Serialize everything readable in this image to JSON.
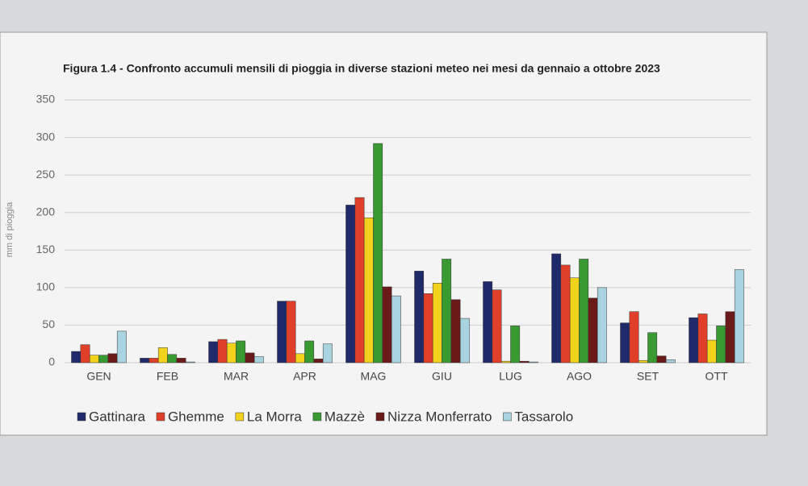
{
  "chart_data": {
    "type": "bar",
    "title": "Figura 1.4 - Confronto accumuli mensili di pioggia in diverse stazioni meteo nei mesi da gennaio a ottobre 2023",
    "y_label": "mm di pioggia",
    "categories": [
      "GEN",
      "FEB",
      "MAR",
      "APR",
      "MAG",
      "GIU",
      "LUG",
      "AGO",
      "SET",
      "OTT"
    ],
    "series": [
      {
        "name": "Gattinara",
        "color": "#1f2a6b",
        "values": [
          15,
          6,
          28,
          82,
          210,
          122,
          108,
          145,
          53,
          60
        ]
      },
      {
        "name": "Ghemme",
        "color": "#e0402a",
        "values": [
          24,
          6,
          31,
          82,
          220,
          92,
          97,
          130,
          68,
          65
        ]
      },
      {
        "name": "La Morra",
        "color": "#f2d21b",
        "values": [
          10,
          20,
          26,
          12,
          193,
          106,
          2,
          113,
          3,
          30
        ]
      },
      {
        "name": "Mazzè",
        "color": "#3a9a32",
        "values": [
          10,
          11,
          29,
          29,
          292,
          138,
          49,
          138,
          40,
          49
        ]
      },
      {
        "name": "Nizza Monferrato",
        "color": "#6b1a1a",
        "values": [
          12,
          6,
          13,
          5,
          101,
          84,
          2,
          86,
          9,
          68
        ]
      },
      {
        "name": "Tassarolo",
        "color": "#a9d3e0",
        "values": [
          42,
          1,
          8,
          25,
          89,
          59,
          1,
          100,
          4,
          124
        ]
      }
    ],
    "ylim": [
      0,
      350
    ],
    "yticks": [
      0,
      50,
      100,
      150,
      200,
      250,
      300,
      350
    ],
    "grid": true
  }
}
